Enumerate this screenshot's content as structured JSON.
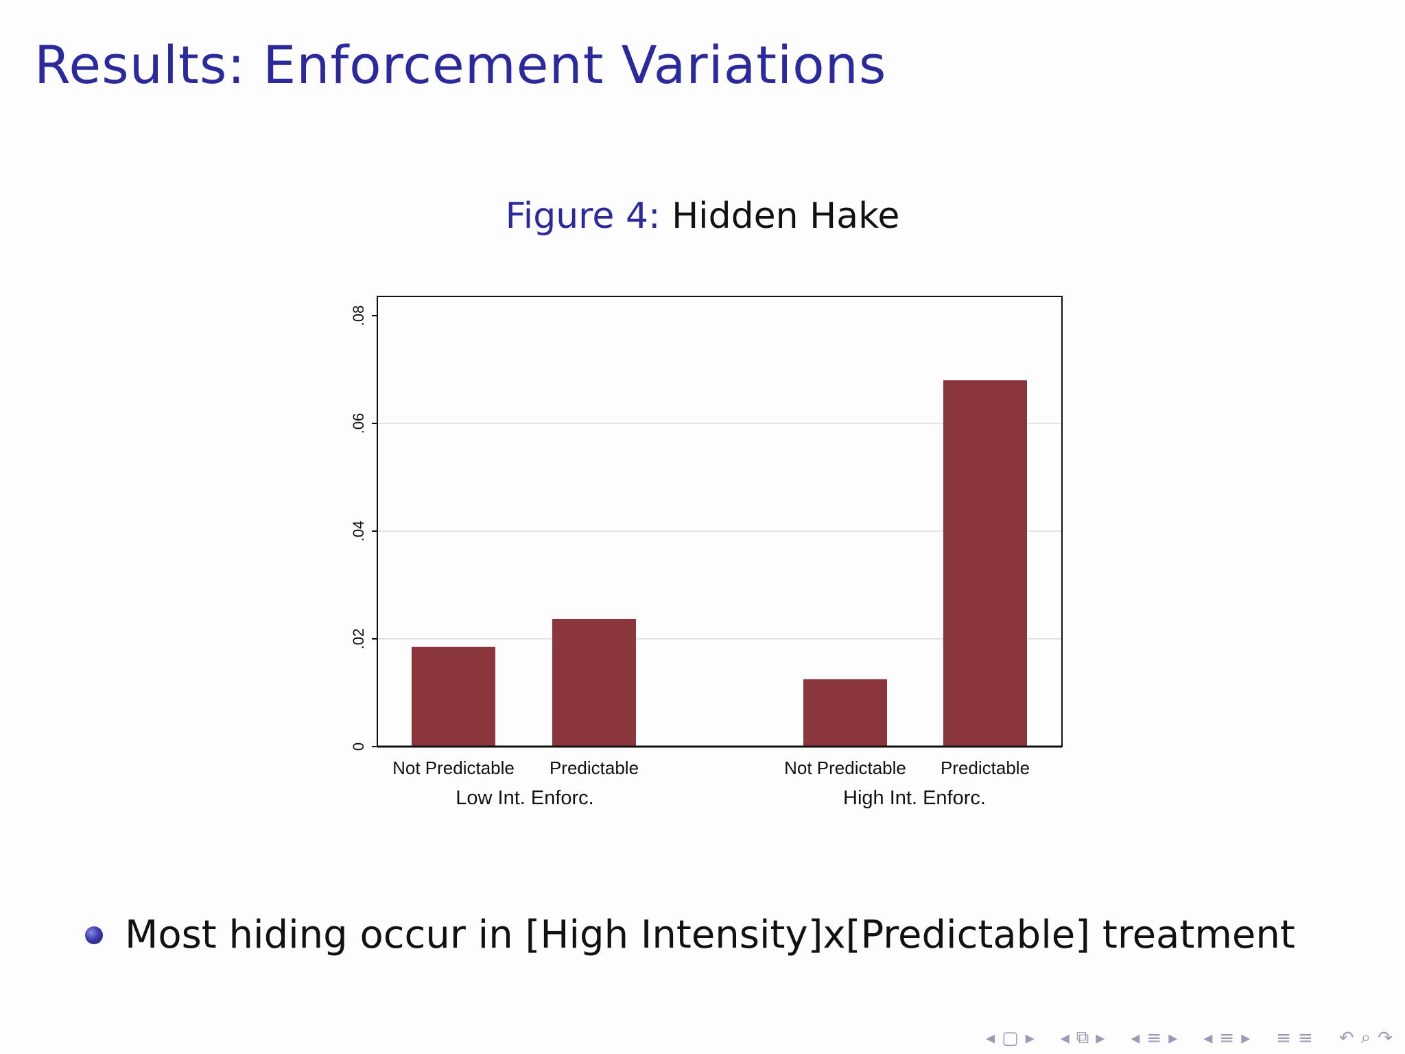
{
  "slide": {
    "title": "Results: Enforcement Variations",
    "figure_label": "Figure 4:",
    "figure_title": "Hidden Hake",
    "bullet": "Most hiding occur in [High Intensity]x[Predictable] treatment"
  },
  "chart_data": {
    "type": "bar",
    "title": "",
    "xlabel": "",
    "ylabel": "",
    "groups": [
      {
        "name": "Low Int. Enforc.",
        "categories": [
          "Not Predictable",
          "Predictable"
        ],
        "values": [
          0.0185,
          0.0237
        ]
      },
      {
        "name": "High Int. Enforc.",
        "categories": [
          "Not Predictable",
          "Predictable"
        ],
        "values": [
          0.0125,
          0.068
        ]
      }
    ],
    "ylim": [
      0,
      0.08
    ],
    "yticks": [
      0,
      0.02,
      0.04,
      0.06,
      0.08
    ],
    "ytick_labels": [
      "0",
      ".02",
      ".04",
      ".06",
      ".08"
    ],
    "grid": true,
    "bar_color": "#8b353c"
  },
  "nav": {
    "color": "#9a9ab8"
  }
}
